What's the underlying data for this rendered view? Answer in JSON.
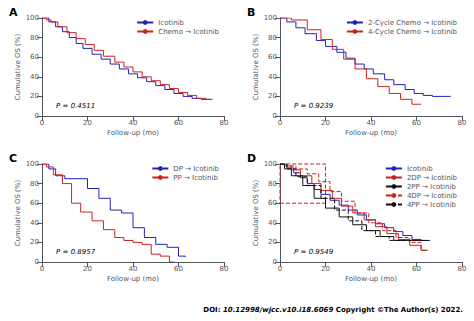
{
  "chart_data": [
    {
      "type": "step",
      "title": "A",
      "annotations": [
        "P = 0.4511"
      ],
      "xlabel": "Follow-up (mo)",
      "ylabel": "Cumulative OS (%)",
      "xlim": [
        0,
        80
      ],
      "ylim": [
        0,
        100
      ],
      "xticks": [
        0,
        20,
        40,
        60,
        80
      ],
      "yticks": [
        0,
        20,
        40,
        60,
        80,
        100
      ],
      "grid": false,
      "legend": "upper right",
      "series": [
        {
          "name": "Icotinib",
          "color": "#2222bb",
          "line_style": "solid",
          "x": [
            0,
            3,
            6,
            9,
            12,
            15,
            18,
            22,
            26,
            30,
            34,
            38,
            42,
            46,
            50,
            54,
            58,
            62,
            66,
            70,
            74
          ],
          "values": [
            100,
            96,
            91,
            86,
            80,
            74,
            69,
            63,
            58,
            53,
            48,
            43,
            39,
            35,
            31,
            27,
            23,
            20,
            18,
            17,
            17
          ]
        },
        {
          "name": "Chemo → Icotinib",
          "color": "#cc2222",
          "line_style": "solid",
          "x": [
            0,
            2,
            4,
            7,
            11,
            15,
            19,
            23,
            27,
            32,
            36,
            40,
            44,
            48,
            52,
            56,
            60,
            64,
            68,
            72,
            75
          ],
          "values": [
            100,
            98,
            96,
            91,
            85,
            79,
            73,
            67,
            61,
            55,
            50,
            45,
            40,
            36,
            32,
            28,
            24,
            21,
            18,
            17,
            17
          ]
        }
      ]
    },
    {
      "type": "step",
      "title": "B",
      "annotations": [
        "P = 0.9239"
      ],
      "xlabel": "Follow-up (mo)",
      "ylabel": "Cumulative OS (%)",
      "xlim": [
        0,
        80
      ],
      "ylim": [
        0,
        100
      ],
      "xticks": [
        0,
        20,
        40,
        60,
        80
      ],
      "yticks": [
        0,
        20,
        40,
        60,
        80,
        100
      ],
      "grid": false,
      "legend": "upper right",
      "series": [
        {
          "name": "2-Cycle Chemo → Icotinib",
          "color": "#2222bb",
          "line_style": "solid",
          "x": [
            0,
            3,
            7,
            11,
            16,
            20,
            25,
            29,
            33,
            37,
            41,
            46,
            50,
            55,
            59,
            63,
            67,
            72,
            75
          ],
          "values": [
            100,
            96,
            90,
            84,
            77,
            71,
            65,
            59,
            53,
            48,
            43,
            37,
            32,
            27,
            23,
            21,
            20,
            20,
            20
          ]
        },
        {
          "name": "4-Cycle Chemo → Icotinib",
          "color": "#cc2222",
          "line_style": "solid",
          "x": [
            0,
            5,
            12,
            18,
            23,
            28,
            33,
            38,
            43,
            48,
            53,
            58,
            62
          ],
          "values": [
            100,
            98,
            88,
            78,
            68,
            58,
            48,
            38,
            30,
            23,
            17,
            12,
            12
          ]
        }
      ]
    },
    {
      "type": "step",
      "title": "C",
      "annotations": [
        "P = 0.8957"
      ],
      "xlabel": "Follow-up (mo)",
      "ylabel": "Cumulative OS (%)",
      "xlim": [
        0,
        80
      ],
      "ylim": [
        0,
        100
      ],
      "xticks": [
        0,
        20,
        40,
        60,
        80
      ],
      "yticks": [
        0,
        20,
        40,
        60,
        80,
        100
      ],
      "grid": false,
      "legend": "upper right",
      "series": [
        {
          "name": "DP → Icotinib",
          "color": "#2222bb",
          "line_style": "solid",
          "x": [
            0,
            1,
            3,
            6,
            10,
            15,
            20,
            25,
            30,
            35,
            40,
            45,
            50,
            55,
            60,
            63
          ],
          "values": [
            100,
            100,
            95,
            88,
            85,
            85,
            75,
            65,
            53,
            50,
            35,
            25,
            18,
            15,
            6,
            5
          ]
        },
        {
          "name": "PP → Icotinib",
          "color": "#cc2222",
          "line_style": "solid",
          "x": [
            0,
            2,
            5,
            9,
            13,
            17,
            22,
            27,
            32,
            36,
            40,
            44,
            48,
            52,
            56,
            58
          ],
          "values": [
            100,
            97,
            89,
            80,
            60,
            51,
            42,
            33,
            25,
            22,
            20,
            18,
            8,
            6,
            0,
            0
          ]
        }
      ]
    },
    {
      "type": "step",
      "title": "D",
      "annotations": [
        "P = 0.9549"
      ],
      "xlabel": "Follow-up (mo)",
      "ylabel": "Cumulative OS (%)",
      "xlim": [
        0,
        80
      ],
      "ylim": [
        0,
        100
      ],
      "xticks": [
        0,
        20,
        40,
        60,
        80
      ],
      "yticks": [
        0,
        20,
        40,
        60,
        80,
        100
      ],
      "grid": false,
      "legend": "upper right",
      "box": {
        "x": [
          0,
          20
        ],
        "y": [
          60,
          100
        ],
        "color": "#cc2222",
        "line_style": "dashed"
      },
      "series": [
        {
          "name": "Icotinib",
          "color": "#2222bb",
          "line_style": "solid",
          "x": [
            0,
            3,
            6,
            9,
            12,
            15,
            18,
            22,
            26,
            30,
            34,
            38,
            42,
            46,
            50,
            54,
            58,
            62,
            66
          ],
          "values": [
            100,
            96,
            91,
            86,
            80,
            74,
            69,
            63,
            58,
            53,
            48,
            43,
            39,
            35,
            31,
            27,
            23,
            22,
            22
          ]
        },
        {
          "name": "2DP → Icotinib",
          "color": "#cc2222",
          "line_style": "solid",
          "x": [
            0,
            2,
            5,
            9,
            14,
            18,
            23,
            27,
            32,
            37,
            42,
            47,
            52,
            57,
            62,
            65
          ],
          "values": [
            100,
            98,
            94,
            88,
            80,
            73,
            65,
            57,
            50,
            43,
            36,
            29,
            23,
            17,
            12,
            12
          ]
        },
        {
          "name": "2PP → Icotinib",
          "color": "#111111",
          "line_style": "solid",
          "x": [
            0,
            2,
            5,
            10,
            15,
            20,
            26,
            32,
            38,
            44,
            50,
            56,
            62,
            65
          ],
          "values": [
            100,
            95,
            88,
            78,
            65,
            55,
            46,
            38,
            32,
            26,
            22,
            22,
            22,
            22
          ]
        },
        {
          "name": "4DP → Icotinib",
          "color": "#cc2222",
          "line_style": "dashed",
          "x": [
            0,
            3,
            7,
            12,
            17,
            22,
            27,
            33,
            39,
            45,
            51,
            57,
            62,
            65
          ],
          "values": [
            100,
            98,
            95,
            90,
            82,
            72,
            62,
            50,
            40,
            32,
            25,
            20,
            12,
            12
          ]
        },
        {
          "name": "4PP → Icotinib",
          "color": "#111111",
          "line_style": "dashed",
          "x": [
            0,
            3,
            7,
            12,
            18,
            24,
            30,
            36,
            42,
            48,
            54,
            60,
            63
          ],
          "values": [
            100,
            95,
            87,
            78,
            65,
            53,
            42,
            32,
            26,
            22,
            22,
            22,
            22
          ]
        }
      ]
    }
  ],
  "annotations": [
    "DOI:",
    " 10.12998/wjcc.v10.i18.6069",
    " Copyright ©The Author(s) 2022."
  ]
}
